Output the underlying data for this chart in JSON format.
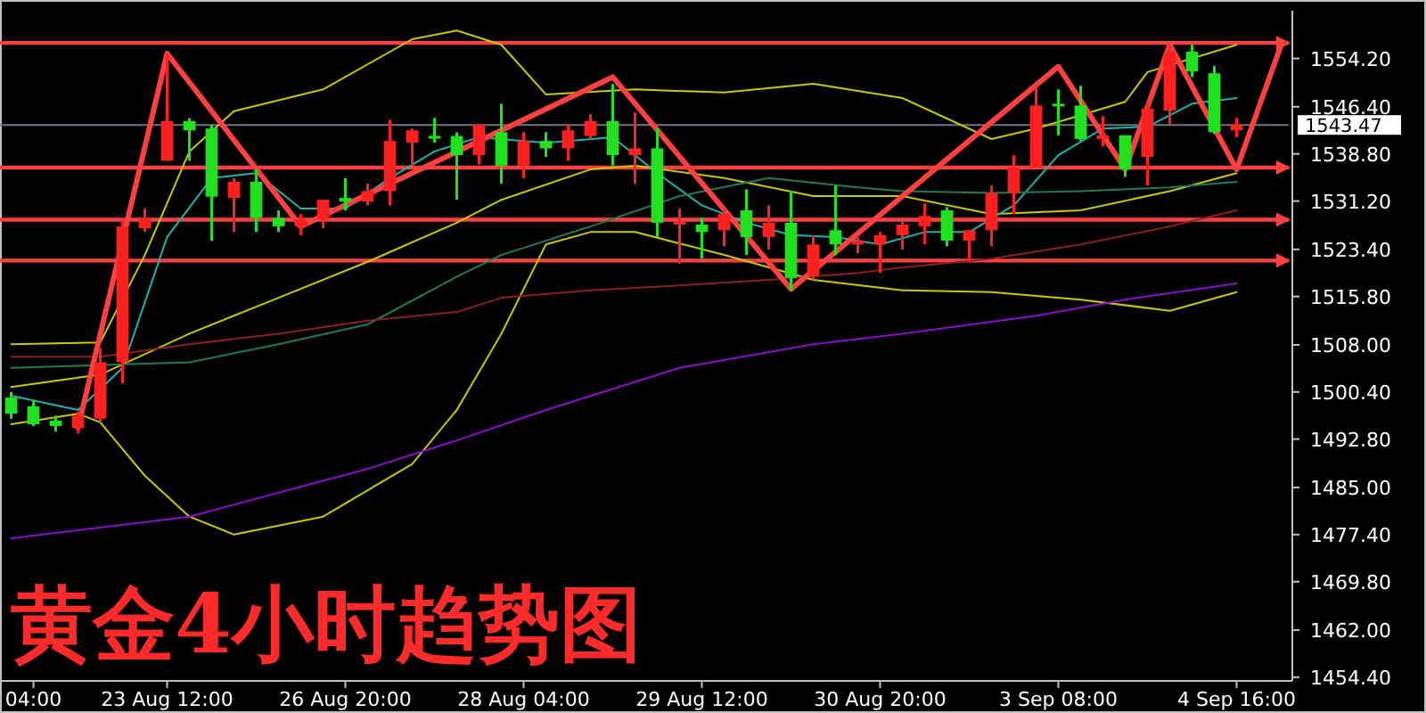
{
  "chart_data": {
    "type": "candlestick",
    "title": "黄金4小时趋势图",
    "categories": [
      null,
      "04:00",
      null,
      null,
      null,
      null,
      null,
      "23 Aug 12:00",
      null,
      null,
      null,
      null,
      null,
      null,
      null,
      "26 Aug 20:00",
      null,
      null,
      null,
      null,
      null,
      null,
      null,
      "28 Aug 04:00",
      null,
      null,
      null,
      null,
      null,
      null,
      null,
      "29 Aug 12:00",
      null,
      null,
      null,
      null,
      null,
      null,
      null,
      "30 Aug 20:00",
      null,
      null,
      null,
      null,
      null,
      null,
      null,
      "3 Sep 08:00",
      null,
      null,
      null,
      null,
      null,
      null,
      null,
      "4 Sep 16:00",
      null,
      null
    ],
    "ohlc": [
      [
        1499.5,
        1500.4,
        1496.1,
        1496.9
      ],
      [
        1498.1,
        1498.9,
        1494.9,
        1495.2
      ],
      [
        1495.8,
        1496.6,
        1494.0,
        1494.9
      ],
      [
        1494.6,
        1497.2,
        1493.7,
        1496.6
      ],
      [
        1496.1,
        1507.5,
        1495.5,
        1505.2
      ],
      [
        1505.2,
        1528.2,
        1501.8,
        1527.1
      ],
      [
        1526.8,
        1530.0,
        1526.2,
        1528.5
      ],
      [
        1537.7,
        1555.0,
        1537.7,
        1544.1
      ],
      [
        1544.1,
        1544.6,
        1537.7,
        1542.6
      ],
      [
        1542.9,
        1543.5,
        1524.8,
        1531.9
      ],
      [
        1531.7,
        1534.9,
        1526.2,
        1534.3
      ],
      [
        1534.3,
        1536.3,
        1526.2,
        1528.5
      ],
      [
        1528.5,
        1529.7,
        1526.2,
        1527.1
      ],
      [
        1527.1,
        1529.1,
        1525.7,
        1528.2
      ],
      [
        1528.2,
        1531.4,
        1526.8,
        1531.4
      ],
      [
        1531.7,
        1534.9,
        1529.7,
        1531.1
      ],
      [
        1531.1,
        1534.0,
        1530.5,
        1532.8
      ],
      [
        1532.8,
        1544.3,
        1530.5,
        1540.9
      ],
      [
        1540.6,
        1542.9,
        1536.9,
        1542.6
      ],
      [
        1541.7,
        1544.6,
        1540.6,
        1541.4
      ],
      [
        1541.7,
        1542.3,
        1531.4,
        1538.6
      ],
      [
        1538.6,
        1543.5,
        1537.1,
        1543.5
      ],
      [
        1542.3,
        1546.9,
        1534.0,
        1536.9
      ],
      [
        1536.9,
        1542.3,
        1534.9,
        1540.9
      ],
      [
        1540.9,
        1542.3,
        1538.3,
        1539.7
      ],
      [
        1539.7,
        1543.5,
        1537.7,
        1542.6
      ],
      [
        1541.7,
        1545.2,
        1541.2,
        1544.1
      ],
      [
        1544.1,
        1550.1,
        1536.9,
        1538.6
      ],
      [
        1538.6,
        1545.5,
        1534.0,
        1539.7
      ],
      [
        1539.7,
        1542.9,
        1525.4,
        1527.7
      ],
      [
        1527.4,
        1530.0,
        1521.1,
        1527.9
      ],
      [
        1527.4,
        1528.5,
        1521.9,
        1526.2
      ],
      [
        1526.5,
        1530.0,
        1523.9,
        1529.1
      ],
      [
        1529.7,
        1533.1,
        1522.5,
        1525.4
      ],
      [
        1525.4,
        1530.5,
        1523.4,
        1527.7
      ],
      [
        1527.7,
        1532.8,
        1516.8,
        1518.8
      ],
      [
        1519.1,
        1525.7,
        1518.5,
        1524.2
      ],
      [
        1526.5,
        1533.7,
        1522.5,
        1524.2
      ],
      [
        1524.2,
        1525.4,
        1522.8,
        1524.8
      ],
      [
        1524.2,
        1526.2,
        1519.6,
        1525.7
      ],
      [
        1525.7,
        1528.0,
        1523.4,
        1527.4
      ],
      [
        1527.1,
        1530.8,
        1524.2,
        1528.8
      ],
      [
        1529.7,
        1530.2,
        1523.9,
        1524.8
      ],
      [
        1524.8,
        1526.5,
        1521.4,
        1526.5
      ],
      [
        1526.5,
        1533.7,
        1523.9,
        1532.5
      ],
      [
        1532.5,
        1538.6,
        1529.1,
        1536.6
      ],
      [
        1536.6,
        1549.5,
        1536.6,
        1546.6
      ],
      [
        1546.9,
        1549.2,
        1541.8,
        1546.6
      ],
      [
        1546.6,
        1549.8,
        1540.9,
        1541.2
      ],
      [
        1541.2,
        1544.9,
        1540.0,
        1541.8
      ],
      [
        1541.8,
        1541.8,
        1535.1,
        1536.3
      ],
      [
        1538.3,
        1547.2,
        1533.7,
        1546.1
      ],
      [
        1545.8,
        1556.4,
        1543.5,
        1555.3
      ],
      [
        1555.3,
        1556.4,
        1551.2,
        1552.1
      ],
      [
        1551.8,
        1553.0,
        1542.0,
        1542.3
      ],
      [
        1542.6,
        1544.6,
        1541.5,
        1543.5
      ],
      null,
      null
    ],
    "colors": [
      "#20e020",
      "#20e020",
      "#20e020",
      "#ff2020",
      "#ff2020",
      "#ff2020",
      "#ff2020",
      "#ff2020",
      "#20e020",
      "#20e020",
      "#ff2020",
      "#20e020",
      "#20e020",
      "#ff2020",
      "#ff2020",
      "#20e020",
      "#ff2020",
      "#ff2020",
      "#ff2020",
      "#20e020",
      "#20e020",
      "#ff2020",
      "#20e020",
      "#ff2020",
      "#20e020",
      "#ff2020",
      "#ff2020",
      "#20e020",
      "#ff2020",
      "#20e020",
      "#ff2020",
      "#20e020",
      "#ff2020",
      "#20e020",
      "#ff2020",
      "#20e020",
      "#ff2020",
      "#20e020",
      "#ff2020",
      "#ff2020",
      "#ff2020",
      "#ff2020",
      "#20e020",
      "#ff2020",
      "#ff2020",
      "#ff2020",
      "#ff2020",
      "#20e020",
      "#20e020",
      "#ff2020",
      "#20e020",
      "#ff2020",
      "#ff2020",
      "#20e020",
      "#20e020",
      "#ff2020",
      null,
      null
    ],
    "series": [
      {
        "type": "line",
        "color": "#c8c800",
        "values": [
          1508.1,
          null,
          null,
          null,
          1508.4,
          null,
          1522.5,
          null,
          1539.2,
          null,
          1545.7,
          null,
          null,
          null,
          1549.2,
          null,
          null,
          null,
          1557.3,
          null,
          1558.7,
          null,
          1556.4,
          null,
          1548.4,
          null,
          null,
          null,
          1549.2,
          null,
          null,
          null,
          1548.7,
          null,
          null,
          null,
          1550.1,
          null,
          null,
          null,
          1547.8,
          null,
          null,
          null,
          1541.2,
          null,
          1542.9,
          null,
          null,
          null,
          1547.2,
          1552.0,
          null,
          null,
          null,
          1556.4,
          null,
          null
        ]
      },
      {
        "type": "line",
        "color": "#c8c800",
        "values": [
          1501.2,
          null,
          null,
          null,
          1503.2,
          null,
          null,
          null,
          1509.8,
          null,
          null,
          null,
          1515.6,
          null,
          null,
          null,
          1521.4,
          null,
          null,
          null,
          1527.7,
          null,
          1531.4,
          null,
          null,
          null,
          1536.3,
          null,
          1536.9,
          null,
          null,
          null,
          1534.9,
          null,
          null,
          null,
          1532.0,
          null,
          null,
          null,
          1532.0,
          null,
          null,
          null,
          1529.1,
          null,
          null,
          null,
          1529.7,
          null,
          null,
          null,
          1532.8,
          null,
          null,
          1535.7,
          null,
          null
        ]
      },
      {
        "type": "line",
        "color": "#c8c800",
        "values": [
          1495.2,
          null,
          null,
          1496.9,
          1495.5,
          null,
          1486.9,
          null,
          1480.3,
          null,
          1477.4,
          null,
          null,
          null,
          1480.3,
          null,
          null,
          null,
          1488.8,
          null,
          1497.5,
          null,
          1509.8,
          null,
          1524.2,
          null,
          1526.2,
          null,
          1526.2,
          null,
          null,
          null,
          1522.5,
          null,
          null,
          null,
          1518.5,
          null,
          null,
          null,
          1516.8,
          null,
          null,
          null,
          1516.5,
          null,
          null,
          null,
          1515.3,
          null,
          null,
          null,
          1513.5,
          null,
          null,
          1516.5,
          null,
          null
        ]
      },
      {
        "type": "line",
        "color": "#20b0b0",
        "values": [
          1499.8,
          null,
          null,
          1497.5,
          null,
          1504.3,
          null,
          1525.4,
          null,
          1534.9,
          null,
          1535.7,
          null,
          1530.0,
          null,
          1530.0,
          null,
          1534.9,
          null,
          1539.2,
          null,
          1541.5,
          null,
          null,
          1540.6,
          null,
          null,
          1541.5,
          null,
          1535.7,
          null,
          1530.5,
          null,
          1527.7,
          null,
          1525.7,
          null,
          1525.4,
          null,
          1524.2,
          null,
          1526.2,
          null,
          1526.2,
          null,
          1530.5,
          null,
          1538.6,
          null,
          1542.9,
          null,
          1543.2,
          null,
          1546.9,
          null,
          1547.8,
          null,
          null
        ]
      },
      {
        "type": "line",
        "color": "#1f7a5a",
        "values": [
          1504.3,
          null,
          null,
          null,
          null,
          null,
          null,
          null,
          1505.2,
          null,
          null,
          null,
          1508.1,
          null,
          null,
          null,
          1511.3,
          null,
          null,
          null,
          1519.0,
          null,
          1522.5,
          null,
          null,
          null,
          1527.1,
          null,
          null,
          null,
          1532.0,
          null,
          null,
          null,
          1534.9,
          null,
          null,
          null,
          1533.4,
          null,
          1532.8,
          null,
          null,
          null,
          1532.5,
          null,
          null,
          null,
          1532.8,
          null,
          null,
          null,
          1533.4,
          null,
          null,
          1534.3,
          null,
          null
        ]
      },
      {
        "type": "line",
        "color": "#8b2020",
        "values": [
          1506.1,
          null,
          null,
          null,
          1506.1,
          null,
          null,
          null,
          1508.1,
          null,
          null,
          null,
          1509.8,
          null,
          null,
          null,
          1511.9,
          null,
          null,
          null,
          1513.3,
          null,
          1515.6,
          null,
          null,
          null,
          1516.8,
          null,
          null,
          null,
          1517.6,
          null,
          null,
          null,
          1518.5,
          null,
          null,
          null,
          1519.6,
          null,
          1520.5,
          null,
          null,
          null,
          1521.9,
          null,
          null,
          null,
          1524.2,
          null,
          null,
          null,
          1527.1,
          null,
          null,
          1529.7,
          null,
          null
        ]
      },
      {
        "type": "line",
        "color": "#8a10c8",
        "values": [
          1476.8,
          null,
          null,
          null,
          null,
          null,
          null,
          null,
          1480.3,
          null,
          null,
          null,
          null,
          null,
          null,
          null,
          1488.0,
          null,
          null,
          null,
          1492.6,
          null,
          null,
          null,
          1497.5,
          null,
          null,
          null,
          null,
          null,
          1504.3,
          null,
          null,
          null,
          null,
          null,
          1508.1,
          null,
          null,
          null,
          1509.8,
          null,
          null,
          null,
          null,
          null,
          1512.7,
          null,
          null,
          null,
          1515.3,
          null,
          null,
          null,
          null,
          1517.9,
          null,
          null
        ]
      },
      {
        "type": "line",
        "color": "#ff4040",
        "values": [
          null,
          null,
          null,
          1494.6,
          null,
          null,
          null,
          1555.0,
          null,
          null,
          null,
          null,
          null,
          1527.1,
          null,
          null,
          null,
          null,
          null,
          null,
          null,
          null,
          null,
          null,
          null,
          null,
          null,
          1551.2,
          null,
          null,
          null,
          null,
          null,
          null,
          null,
          1517.0,
          null,
          null,
          null,
          null,
          null,
          null,
          null,
          null,
          null,
          null,
          null,
          1552.9,
          null,
          null,
          1536.3,
          null,
          1556.4,
          null,
          null,
          1536.3,
          null,
          1556.4
        ]
      }
    ],
    "ref_lines": [
      {
        "axis": "y",
        "value": 1556.7,
        "color": "#ff4040"
      },
      {
        "axis": "y",
        "value": 1543.47,
        "label": "1543.47",
        "color": "#6e7480"
      },
      {
        "axis": "y",
        "value": 1536.6,
        "color": "#ff4040"
      },
      {
        "axis": "y",
        "value": 1528.2,
        "color": "#ff4040"
      },
      {
        "axis": "y",
        "value": 1521.6,
        "color": "#ff4040"
      }
    ],
    "ylim": [
      1453.8,
      1561.9
    ],
    "yticks": [
      {
        "value": 1554.2,
        "label": "1554.20"
      },
      {
        "value": 1546.4,
        "label": "1546.40"
      },
      {
        "value": 1538.8,
        "label": "1538.80"
      },
      {
        "value": 1531.2,
        "label": "1531.20"
      },
      {
        "value": 1523.4,
        "label": "1523.40"
      },
      {
        "value": 1515.8,
        "label": "1515.80"
      },
      {
        "value": 1508.0,
        "label": "1508.00"
      },
      {
        "value": 1500.4,
        "label": "1500.40"
      },
      {
        "value": 1492.8,
        "label": "1492.80"
      },
      {
        "value": 1485.0,
        "label": "1485.00"
      },
      {
        "value": 1477.4,
        "label": "1477.40"
      },
      {
        "value": 1469.8,
        "label": "1469.80"
      },
      {
        "value": 1462.0,
        "label": "1462.00"
      },
      {
        "value": 1454.4,
        "label": "1454.40"
      }
    ]
  }
}
